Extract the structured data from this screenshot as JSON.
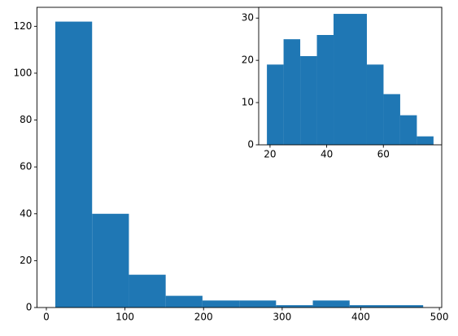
{
  "chart_data": [
    {
      "type": "histogram",
      "bins": [
        11.4,
        58.2,
        105,
        151.8,
        198.6,
        245.4,
        292.2,
        339,
        385.8,
        432.6,
        479.4
      ],
      "values": [
        122,
        40,
        14,
        5,
        3,
        3,
        1,
        3,
        1,
        1
      ],
      "color": "#1f77b4",
      "xlim": [
        -12,
        503
      ],
      "xticks": [
        0,
        100,
        200,
        300,
        400,
        500
      ],
      "ylim": [
        0,
        128.1
      ],
      "yticks": [
        0,
        20,
        40,
        60,
        80,
        100,
        120
      ]
    },
    {
      "type": "histogram",
      "bins": [
        18.9,
        24.78,
        30.66,
        36.54,
        42.42,
        48.3,
        54.18,
        60.06,
        65.94,
        71.82,
        77.7
      ],
      "values": [
        19,
        25,
        21,
        26,
        31,
        31,
        19,
        12,
        7,
        2
      ],
      "color": "#1f77b4",
      "xlim": [
        16,
        80.6
      ],
      "xticks": [
        20,
        40,
        60
      ],
      "ylim": [
        0,
        32.55
      ],
      "yticks": [
        0,
        10,
        20,
        30
      ]
    }
  ]
}
